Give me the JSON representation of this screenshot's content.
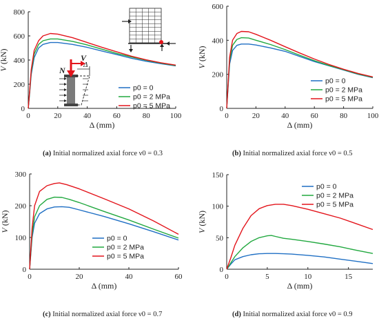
{
  "colors": {
    "p0_0": "#1f6fc4",
    "p0_2": "#21a83f",
    "p0_5": "#e3141b"
  },
  "captions": [
    {
      "tag": "(a)",
      "text": "Initial normalized axial force ν0 = 0.3"
    },
    {
      "tag": "(b)",
      "text": "Initial normalized axial force ν0 = 0.5"
    },
    {
      "tag": "(c)",
      "text": "Initial normalized axial force ν0 = 0.7"
    },
    {
      "tag": "(d)",
      "text": "Initial normalized axial force ν0 = 0.9"
    }
  ],
  "inset_labels": {
    "N": "N",
    "V": "V",
    "delta": "Δ"
  },
  "chart_data": [
    {
      "type": "line",
      "xlabel": "Δ (mm)",
      "ylabel": "V (kN)",
      "xlim": [
        0,
        100
      ],
      "ylim": [
        0,
        800
      ],
      "xticks": [
        0,
        20,
        40,
        60,
        80,
        100
      ],
      "yticks": [
        0,
        200,
        400,
        600,
        800
      ],
      "legend": "center-right",
      "series": [
        {
          "name": "p0 = 0",
          "color_key": "p0_0",
          "points": [
            [
              0,
              0
            ],
            [
              1,
              130
            ],
            [
              2,
              280
            ],
            [
              4,
              420
            ],
            [
              7,
              500
            ],
            [
              10,
              530
            ],
            [
              15,
              545
            ],
            [
              20,
              545
            ],
            [
              30,
              530
            ],
            [
              40,
              505
            ],
            [
              50,
              475
            ],
            [
              60,
              445
            ],
            [
              70,
              415
            ],
            [
              80,
              390
            ],
            [
              90,
              370
            ],
            [
              100,
              352
            ]
          ]
        },
        {
          "name": "p0 = 2 MPa",
          "color_key": "p0_2",
          "points": [
            [
              0,
              0
            ],
            [
              1,
              140
            ],
            [
              2,
              300
            ],
            [
              4,
              450
            ],
            [
              7,
              530
            ],
            [
              10,
              560
            ],
            [
              15,
              575
            ],
            [
              20,
              575
            ],
            [
              30,
              555
            ],
            [
              40,
              525
            ],
            [
              50,
              490
            ],
            [
              60,
              455
            ],
            [
              70,
              425
            ],
            [
              80,
              398
            ],
            [
              90,
              375
            ],
            [
              100,
              355
            ]
          ]
        },
        {
          "name": "p0 = 5 MPa",
          "color_key": "p0_5",
          "points": [
            [
              0,
              0
            ],
            [
              1,
              150
            ],
            [
              2,
              320
            ],
            [
              4,
              480
            ],
            [
              7,
              560
            ],
            [
              10,
              600
            ],
            [
              15,
              620
            ],
            [
              20,
              615
            ],
            [
              30,
              585
            ],
            [
              40,
              545
            ],
            [
              50,
              505
            ],
            [
              60,
              468
            ],
            [
              70,
              432
            ],
            [
              80,
              402
            ],
            [
              90,
              378
            ],
            [
              100,
              358
            ]
          ]
        }
      ]
    },
    {
      "type": "line",
      "xlabel": "Δ (mm)",
      "ylabel": "V (kN)",
      "xlim": [
        0,
        100
      ],
      "ylim": [
        0,
        600
      ],
      "xticks": [
        0,
        20,
        40,
        60,
        80,
        100
      ],
      "yticks": [
        0,
        200,
        400,
        600
      ],
      "legend": "center-right",
      "series": [
        {
          "name": "p0 = 0",
          "color_key": "p0_0",
          "points": [
            [
              0,
              0
            ],
            [
              1,
              130
            ],
            [
              2,
              260
            ],
            [
              4,
              340
            ],
            [
              7,
              370
            ],
            [
              10,
              378
            ],
            [
              15,
              378
            ],
            [
              20,
              372
            ],
            [
              30,
              355
            ],
            [
              40,
              335
            ],
            [
              50,
              305
            ],
            [
              60,
              275
            ],
            [
              70,
              250
            ],
            [
              80,
              225
            ],
            [
              90,
              200
            ],
            [
              100,
              180
            ]
          ]
        },
        {
          "name": "p0 = 2 MPa",
          "color_key": "p0_2",
          "points": [
            [
              0,
              0
            ],
            [
              1,
              140
            ],
            [
              2,
              280
            ],
            [
              4,
              370
            ],
            [
              7,
              405
            ],
            [
              10,
              415
            ],
            [
              15,
              413
            ],
            [
              20,
              400
            ],
            [
              30,
              375
            ],
            [
              40,
              345
            ],
            [
              50,
              312
            ],
            [
              60,
              280
            ],
            [
              70,
              252
            ],
            [
              80,
              227
            ],
            [
              90,
              202
            ],
            [
              100,
              182
            ]
          ]
        },
        {
          "name": "p0 = 5 MPa",
          "color_key": "p0_5",
          "points": [
            [
              0,
              0
            ],
            [
              1,
              150
            ],
            [
              2,
              300
            ],
            [
              4,
              400
            ],
            [
              7,
              440
            ],
            [
              10,
              452
            ],
            [
              15,
              450
            ],
            [
              20,
              435
            ],
            [
              30,
              400
            ],
            [
              40,
              362
            ],
            [
              50,
              325
            ],
            [
              60,
              290
            ],
            [
              70,
              258
            ],
            [
              80,
              230
            ],
            [
              90,
              205
            ],
            [
              100,
              185
            ]
          ]
        }
      ]
    },
    {
      "type": "line",
      "xlabel": "Δ (mm)",
      "ylabel": "V (kN)",
      "xlim": [
        0,
        60
      ],
      "ylim": [
        0,
        300
      ],
      "xticks": [
        0,
        20,
        40,
        60
      ],
      "yticks": [
        0,
        100,
        200,
        300
      ],
      "legend": "bottom-left",
      "series": [
        {
          "name": "p0 = 0",
          "color_key": "p0_0",
          "points": [
            [
              0,
              0
            ],
            [
              1,
              100
            ],
            [
              2,
              145
            ],
            [
              4,
              175
            ],
            [
              7,
              190
            ],
            [
              10,
              196
            ],
            [
              13,
              197
            ],
            [
              16,
              195
            ],
            [
              20,
              187
            ],
            [
              30,
              166
            ],
            [
              40,
              143
            ],
            [
              50,
              118
            ],
            [
              60,
              92
            ]
          ]
        },
        {
          "name": "p0 = 2 MPa",
          "color_key": "p0_2",
          "points": [
            [
              0,
              0
            ],
            [
              1,
              110
            ],
            [
              2,
              165
            ],
            [
              4,
              200
            ],
            [
              7,
              220
            ],
            [
              10,
              227
            ],
            [
              13,
              226
            ],
            [
              16,
              220
            ],
            [
              20,
              210
            ],
            [
              30,
              182
            ],
            [
              40,
              155
            ],
            [
              50,
              126
            ],
            [
              60,
              98
            ]
          ]
        },
        {
          "name": "p0 = 5 MPa",
          "color_key": "p0_5",
          "points": [
            [
              0,
              0
            ],
            [
              1,
              130
            ],
            [
              2,
              200
            ],
            [
              4,
              245
            ],
            [
              7,
              263
            ],
            [
              10,
              270
            ],
            [
              12,
              272
            ],
            [
              15,
              266
            ],
            [
              20,
              253
            ],
            [
              30,
              222
            ],
            [
              40,
              190
            ],
            [
              50,
              152
            ],
            [
              60,
              110
            ]
          ]
        }
      ]
    },
    {
      "type": "line",
      "xlabel": "Δ (mm)",
      "ylabel": "V (kN)",
      "xlim": [
        0,
        18
      ],
      "ylim": [
        0,
        150
      ],
      "xticks": [
        0,
        5,
        10,
        15
      ],
      "yticks": [
        0,
        50,
        100,
        150
      ],
      "legend": "top-right",
      "series": [
        {
          "name": "p0 = 0",
          "color_key": "p0_0",
          "points": [
            [
              0,
              0
            ],
            [
              0.5,
              8
            ],
            [
              1,
              15
            ],
            [
              2,
              20
            ],
            [
              3,
              23
            ],
            [
              4,
              24.5
            ],
            [
              5,
              25
            ],
            [
              6,
              25
            ],
            [
              7,
              24.5
            ],
            [
              8,
              24
            ],
            [
              10,
              22
            ],
            [
              12,
              19.5
            ],
            [
              14,
              16
            ],
            [
              16,
              12.5
            ],
            [
              18,
              9
            ]
          ]
        },
        {
          "name": "p0 = 2 MPa",
          "color_key": "p0_2",
          "points": [
            [
              0,
              0
            ],
            [
              0.5,
              10
            ],
            [
              1,
              20
            ],
            [
              2,
              34
            ],
            [
              3,
              44
            ],
            [
              4,
              50
            ],
            [
              5,
              53
            ],
            [
              5.5,
              53.5
            ],
            [
              6,
              52
            ],
            [
              7,
              49
            ],
            [
              8,
              47.5
            ],
            [
              10,
              44
            ],
            [
              12,
              40
            ],
            [
              14,
              35.5
            ],
            [
              16,
              30
            ],
            [
              18,
              25
            ]
          ]
        },
        {
          "name": "p0 = 5 MPa",
          "color_key": "p0_5",
          "points": [
            [
              0,
              0
            ],
            [
              0.5,
              18
            ],
            [
              1,
              38
            ],
            [
              2,
              65
            ],
            [
              3,
              85
            ],
            [
              4,
              96
            ],
            [
              5,
              101
            ],
            [
              6,
              103
            ],
            [
              7,
              103
            ],
            [
              8,
              101
            ],
            [
              10,
              95
            ],
            [
              12,
              88
            ],
            [
              14,
              81
            ],
            [
              16,
              72
            ],
            [
              18,
              63
            ]
          ]
        }
      ]
    }
  ]
}
